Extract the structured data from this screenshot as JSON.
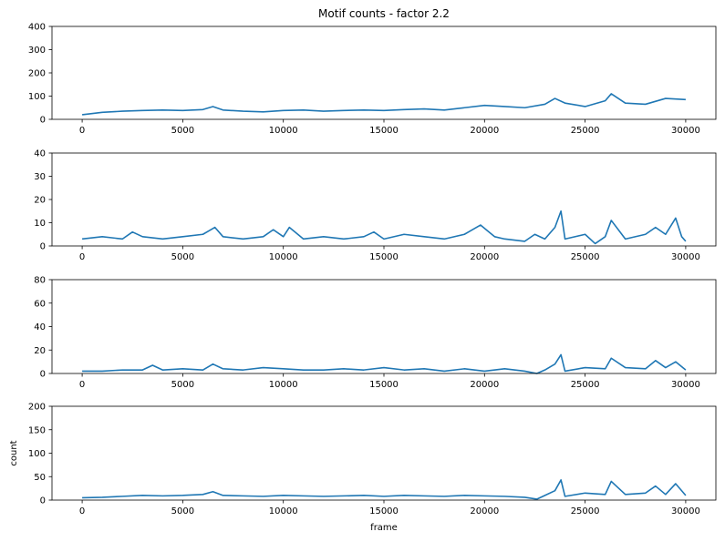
{
  "figure": {
    "title": "Motif counts - factor 2.2"
  },
  "style": {
    "line_color": "#1f77b4",
    "axis_color": "#000000",
    "background": "#ffffff"
  },
  "chart_data": [
    {
      "type": "line",
      "title": "Motif counts - factor 2.2",
      "xlabel": "",
      "ylabel": "",
      "xlim": [
        -1500,
        31500
      ],
      "ylim": [
        0,
        400
      ],
      "xticks": [
        0,
        5000,
        10000,
        15000,
        20000,
        25000,
        30000
      ],
      "yticks": [
        0,
        100,
        200,
        300,
        400
      ],
      "grid": false,
      "series": [
        {
          "x": [
            0,
            1000,
            2000,
            3000,
            4000,
            5000,
            6000,
            6500,
            7000,
            8000,
            9000,
            10000,
            11000,
            12000,
            13000,
            14000,
            15000,
            16000,
            17000,
            18000,
            19000,
            20000,
            21000,
            22000,
            23000,
            23500,
            24000,
            25000,
            26000,
            26300,
            27000,
            28000,
            29000,
            30000
          ],
          "y": [
            20,
            30,
            35,
            38,
            40,
            38,
            42,
            55,
            40,
            35,
            32,
            38,
            40,
            35,
            38,
            40,
            38,
            42,
            45,
            40,
            50,
            60,
            55,
            50,
            65,
            90,
            70,
            55,
            80,
            110,
            70,
            65,
            90,
            85
          ]
        }
      ]
    },
    {
      "type": "line",
      "xlabel": "",
      "ylabel": "",
      "xlim": [
        -1500,
        31500
      ],
      "ylim": [
        0,
        40
      ],
      "xticks": [
        0,
        5000,
        10000,
        15000,
        20000,
        25000,
        30000
      ],
      "yticks": [
        0,
        10,
        20,
        30,
        40
      ],
      "grid": false,
      "series": [
        {
          "x": [
            0,
            1000,
            2000,
            2500,
            3000,
            4000,
            5000,
            6000,
            6600,
            7000,
            8000,
            9000,
            9500,
            10000,
            10300,
            11000,
            12000,
            13000,
            14000,
            14500,
            15000,
            16000,
            17000,
            18000,
            19000,
            19800,
            20500,
            21000,
            22000,
            22500,
            23000,
            23500,
            23800,
            24000,
            25000,
            25500,
            26000,
            26300,
            27000,
            28000,
            28500,
            29000,
            29500,
            29800,
            30000
          ],
          "y": [
            3,
            4,
            3,
            6,
            4,
            3,
            4,
            5,
            8,
            4,
            3,
            4,
            7,
            4,
            8,
            3,
            4,
            3,
            4,
            6,
            3,
            5,
            4,
            3,
            5,
            9,
            4,
            3,
            2,
            5,
            3,
            8,
            15,
            3,
            5,
            1,
            4,
            11,
            3,
            5,
            8,
            5,
            12,
            4,
            2
          ]
        }
      ]
    },
    {
      "type": "line",
      "xlabel": "",
      "ylabel": "",
      "xlim": [
        -1500,
        31500
      ],
      "ylim": [
        0,
        80
      ],
      "xticks": [
        0,
        5000,
        10000,
        15000,
        20000,
        25000,
        30000
      ],
      "yticks": [
        0,
        20,
        40,
        60,
        80
      ],
      "grid": false,
      "series": [
        {
          "x": [
            0,
            1000,
            2000,
            3000,
            3500,
            4000,
            5000,
            6000,
            6500,
            7000,
            8000,
            9000,
            10000,
            11000,
            12000,
            13000,
            14000,
            15000,
            16000,
            17000,
            18000,
            19000,
            20000,
            21000,
            22000,
            22600,
            23000,
            23500,
            23800,
            24000,
            25000,
            26000,
            26300,
            27000,
            28000,
            28500,
            29000,
            29500,
            30000
          ],
          "y": [
            2,
            2,
            3,
            3,
            7,
            3,
            4,
            3,
            8,
            4,
            3,
            5,
            4,
            3,
            3,
            4,
            3,
            5,
            3,
            4,
            2,
            4,
            2,
            4,
            2,
            0,
            3,
            8,
            16,
            2,
            5,
            4,
            13,
            5,
            4,
            11,
            5,
            10,
            3
          ]
        }
      ]
    },
    {
      "type": "line",
      "xlabel": "frame",
      "ylabel": "count",
      "xlim": [
        -1500,
        31500
      ],
      "ylim": [
        0,
        200
      ],
      "xticks": [
        0,
        5000,
        10000,
        15000,
        20000,
        25000,
        30000
      ],
      "yticks": [
        0,
        50,
        100,
        150,
        200
      ],
      "grid": false,
      "series": [
        {
          "x": [
            0,
            1000,
            2000,
            3000,
            4000,
            5000,
            6000,
            6500,
            7000,
            8000,
            9000,
            10000,
            11000,
            12000,
            13000,
            14000,
            15000,
            16000,
            17000,
            18000,
            19000,
            20000,
            21000,
            22000,
            22600,
            23000,
            23500,
            23800,
            24000,
            25000,
            26000,
            26300,
            27000,
            28000,
            28500,
            29000,
            29500,
            30000
          ],
          "y": [
            5,
            6,
            8,
            10,
            9,
            10,
            12,
            18,
            10,
            9,
            8,
            10,
            9,
            8,
            9,
            10,
            8,
            10,
            9,
            8,
            10,
            9,
            8,
            6,
            2,
            10,
            20,
            43,
            8,
            15,
            12,
            40,
            12,
            15,
            30,
            12,
            35,
            10
          ]
        }
      ]
    }
  ]
}
